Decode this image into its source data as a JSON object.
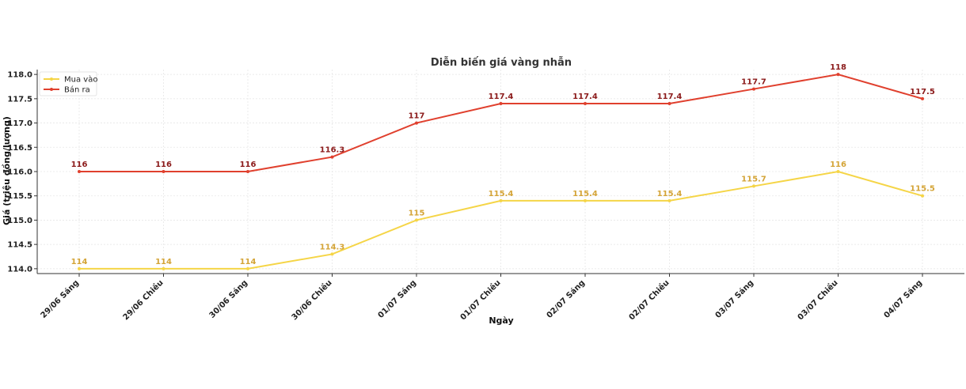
{
  "chart_data": {
    "type": "line",
    "title": "Diễn biến giá vàng nhẫn",
    "xlabel": "Ngày",
    "ylabel": "Giá (triệu đồng/lượng)",
    "categories": [
      "29/06 Sáng",
      "29/06 Chiều",
      "30/06 Sáng",
      "30/06 Chiều",
      "01/07 Sáng",
      "01/07 Chiều",
      "02/07 Sáng",
      "02/07 Chiều",
      "03/07 Sáng",
      "03/07 Chiều",
      "04/07 Sáng"
    ],
    "ylim": [
      113.9,
      118.1
    ],
    "yticks": [
      "114.0",
      "114.5",
      "115.0",
      "115.5",
      "116.0",
      "116.5",
      "117.0",
      "117.5",
      "118.0"
    ],
    "grid": true,
    "legend_position": "top-left",
    "series": [
      {
        "name": "Mua vào",
        "color": "#F5D547",
        "label_color": "#D4A437",
        "values": [
          114,
          114,
          114,
          114.3,
          115,
          115.4,
          115.4,
          115.4,
          115.7,
          116,
          115.5
        ],
        "labels": [
          "114",
          "114",
          "114",
          "114.3",
          "115",
          "115.4",
          "115.4",
          "115.4",
          "115.7",
          "116",
          "115.5"
        ]
      },
      {
        "name": "Bán ra",
        "color": "#E0402E",
        "label_color": "#8B1A1A",
        "values": [
          116,
          116,
          116,
          116.3,
          117,
          117.4,
          117.4,
          117.4,
          117.7,
          118,
          117.5
        ],
        "labels": [
          "116",
          "116",
          "116",
          "116.3",
          "117",
          "117.4",
          "117.4",
          "117.4",
          "117.7",
          "118",
          "117.5"
        ]
      }
    ]
  }
}
